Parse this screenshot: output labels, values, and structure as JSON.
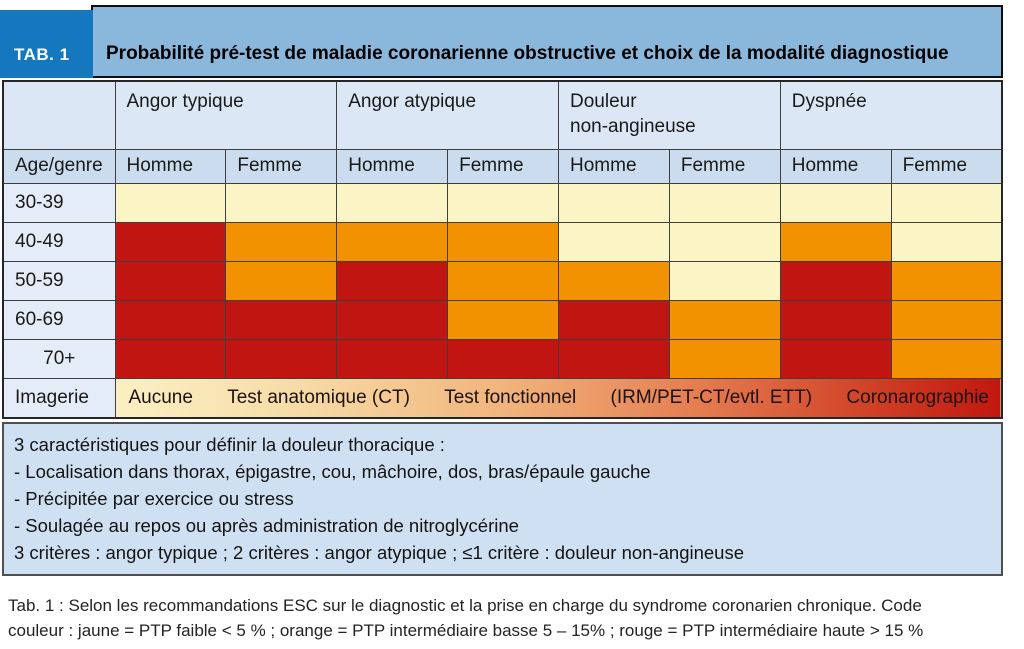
{
  "header": {
    "tab_label": "TAB. 1",
    "title": "Probabilité pré-test de maladie coronarienne obstructive et choix de la modalité diagnostique"
  },
  "table": {
    "row_label_header": "Age/genre",
    "groups": [
      {
        "label": "Angor typique"
      },
      {
        "label": "Angor atypique"
      },
      {
        "label": "Douleur\nnon-angineuse"
      },
      {
        "label": "Dyspnée"
      }
    ],
    "sub_headers": [
      "Homme",
      "Femme"
    ],
    "rows": [
      {
        "label": "30-39",
        "cells": [
          "yellow",
          "yellow",
          "yellow",
          "yellow",
          "yellow",
          "yellow",
          "yellow",
          "yellow"
        ]
      },
      {
        "label": "40-49",
        "cells": [
          "red",
          "orange",
          "orange",
          "orange",
          "yellow",
          "yellow",
          "orange",
          "yellow"
        ]
      },
      {
        "label": "50-59",
        "cells": [
          "red",
          "orange",
          "red",
          "orange",
          "orange",
          "yellow",
          "red",
          "orange"
        ]
      },
      {
        "label": "60-69",
        "cells": [
          "red",
          "red",
          "red",
          "orange",
          "red",
          "orange",
          "red",
          "orange"
        ]
      },
      {
        "label": "70+",
        "cells": [
          "red",
          "red",
          "red",
          "red",
          "red",
          "orange",
          "red",
          "orange"
        ]
      }
    ],
    "imagerie": {
      "label": "Imagerie",
      "options": [
        "Aucune",
        "Test anatomique (CT)",
        "Test fonctionnel",
        "(IRM/PET-CT/evtl. ETT)",
        "Coronarographie"
      ]
    }
  },
  "legend_colors": {
    "yellow": "#fbf5c6",
    "orange": "#f39200",
    "red": "#c11512"
  },
  "notes": {
    "lines": [
      "3 caractéristiques pour définir la douleur thoracique :",
      "- Localisation dans thorax, épigastre, cou, mâchoire, dos, bras/épaule gauche",
      "- Précipitée par exercice ou stress",
      "- Soulagée au repos ou après administration de nitroglycérine",
      "3 critères : angor typique ; 2 critères : angor atypique ; ≤1 critère : douleur non-angineuse"
    ]
  },
  "caption": {
    "line1": "Tab. 1 : Selon les recommandations ESC sur le diagnostic et la prise en charge du syndrome coronarien chronique. Code",
    "line2": "couleur : jaune = PTP faible < 5 % ;  orange = PTP intermédiaire basse 5 – 15% ; rouge = PTP intermédiaire haute > 15 %"
  }
}
